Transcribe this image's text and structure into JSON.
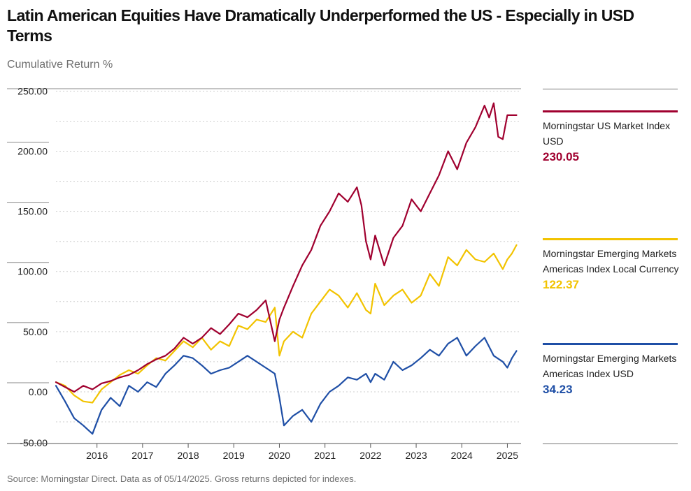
{
  "title": "Latin American Equities Have Dramatically Underperformed the US - Especially in USD Terms",
  "subtitle": "Cumulative Return %",
  "source": "Source: Morningstar Direct. Data as of 05/14/2025. Gross returns depicted for indexes.",
  "colors": {
    "us": "#a0002f",
    "em_local": "#f2c300",
    "em_usd": "#1f4fa6",
    "grid": "#cfcfcf",
    "axis": "#555555"
  },
  "chart_data": {
    "type": "line",
    "title": "Latin American Equities Have Dramatically Underperformed the US - Especially in USD Terms",
    "ylabel": "Cumulative Return %",
    "xlabel": "",
    "ylim": [
      -43,
      252
    ],
    "yticks": [
      -50,
      0,
      50,
      100,
      150,
      200,
      250
    ],
    "ytick_labels": [
      "-50.00",
      "0.00",
      "50.00",
      "100.00",
      "150.00",
      "200.00",
      "250.00"
    ],
    "xlim": [
      2015.1,
      2025.3
    ],
    "xticks": [
      2016,
      2017,
      2018,
      2019,
      2020,
      2021,
      2022,
      2023,
      2024,
      2025
    ],
    "xtick_labels": [
      "2016",
      "2017",
      "2018",
      "2019",
      "2020",
      "2021",
      "2022",
      "2023",
      "2024",
      "2025"
    ],
    "series": [
      {
        "name": "Morningstar US Market Index USD",
        "name_lines": [
          "Morningstar US Market Index",
          "USD"
        ],
        "last_value": "230.05",
        "color_key": "us",
        "x": [
          2015.1,
          2015.3,
          2015.5,
          2015.7,
          2015.9,
          2016.1,
          2016.3,
          2016.5,
          2016.7,
          2016.9,
          2017.1,
          2017.3,
          2017.5,
          2017.7,
          2017.9,
          2018.1,
          2018.3,
          2018.5,
          2018.7,
          2018.9,
          2019.1,
          2019.3,
          2019.5,
          2019.7,
          2019.9,
          2020.0,
          2020.1,
          2020.3,
          2020.5,
          2020.7,
          2020.9,
          2021.1,
          2021.3,
          2021.5,
          2021.7,
          2021.8,
          2021.9,
          2022.0,
          2022.1,
          2022.3,
          2022.5,
          2022.7,
          2022.9,
          2023.1,
          2023.3,
          2023.5,
          2023.7,
          2023.9,
          2024.1,
          2024.3,
          2024.5,
          2024.6,
          2024.7,
          2024.8,
          2024.9,
          2025.0,
          2025.1,
          2025.2
        ],
        "values": [
          8,
          4,
          0,
          5,
          2,
          7,
          9,
          12,
          14,
          18,
          23,
          27,
          30,
          36,
          45,
          40,
          45,
          53,
          48,
          56,
          65,
          62,
          68,
          76,
          42,
          60,
          70,
          88,
          105,
          118,
          138,
          150,
          165,
          158,
          170,
          155,
          125,
          110,
          130,
          105,
          128,
          138,
          160,
          150,
          165,
          180,
          200,
          185,
          207,
          220,
          238,
          228,
          240,
          212,
          210,
          230,
          230,
          230
        ]
      },
      {
        "name": "Morningstar Emerging Markets Americas Index Local Currency",
        "name_lines": [
          "Morningstar Emerging Markets",
          "Americas Index Local Currency"
        ],
        "last_value": "122.37",
        "color_key": "em_local",
        "x": [
          2015.1,
          2015.3,
          2015.5,
          2015.7,
          2015.9,
          2016.1,
          2016.3,
          2016.5,
          2016.7,
          2016.9,
          2017.1,
          2017.3,
          2017.5,
          2017.7,
          2017.9,
          2018.1,
          2018.3,
          2018.5,
          2018.7,
          2018.9,
          2019.1,
          2019.3,
          2019.5,
          2019.7,
          2019.9,
          2020.0,
          2020.1,
          2020.3,
          2020.5,
          2020.7,
          2020.9,
          2021.1,
          2021.3,
          2021.5,
          2021.7,
          2021.9,
          2022.0,
          2022.1,
          2022.3,
          2022.5,
          2022.7,
          2022.9,
          2023.1,
          2023.3,
          2023.5,
          2023.7,
          2023.9,
          2024.1,
          2024.3,
          2024.5,
          2024.7,
          2024.9,
          2025.0,
          2025.1,
          2025.2
        ],
        "values": [
          8,
          5,
          -3,
          -8,
          -9,
          2,
          8,
          14,
          18,
          15,
          22,
          28,
          26,
          34,
          42,
          37,
          45,
          35,
          42,
          38,
          55,
          52,
          60,
          58,
          70,
          30,
          42,
          50,
          45,
          65,
          75,
          85,
          80,
          70,
          82,
          68,
          65,
          90,
          72,
          80,
          85,
          74,
          80,
          98,
          88,
          112,
          105,
          118,
          110,
          108,
          115,
          102,
          110,
          115,
          122
        ]
      },
      {
        "name": "Morningstar Emerging Markets Americas Index USD",
        "name_lines": [
          "Morningstar Emerging Markets",
          "Americas Index USD"
        ],
        "last_value": "34.23",
        "color_key": "em_usd",
        "x": [
          2015.1,
          2015.3,
          2015.5,
          2015.7,
          2015.9,
          2016.1,
          2016.3,
          2016.5,
          2016.7,
          2016.9,
          2017.1,
          2017.3,
          2017.5,
          2017.7,
          2017.9,
          2018.1,
          2018.3,
          2018.5,
          2018.7,
          2018.9,
          2019.1,
          2019.3,
          2019.5,
          2019.7,
          2019.9,
          2020.0,
          2020.1,
          2020.3,
          2020.5,
          2020.7,
          2020.9,
          2021.1,
          2021.3,
          2021.5,
          2021.7,
          2021.9,
          2022.0,
          2022.1,
          2022.3,
          2022.5,
          2022.7,
          2022.9,
          2023.1,
          2023.3,
          2023.5,
          2023.7,
          2023.9,
          2024.1,
          2024.3,
          2024.5,
          2024.7,
          2024.9,
          2025.0,
          2025.1,
          2025.2
        ],
        "values": [
          5,
          -8,
          -22,
          -28,
          -35,
          -15,
          -5,
          -12,
          5,
          0,
          8,
          4,
          15,
          22,
          30,
          28,
          22,
          15,
          18,
          20,
          25,
          30,
          25,
          20,
          15,
          -5,
          -28,
          -20,
          -15,
          -25,
          -10,
          0,
          5,
          12,
          10,
          15,
          8,
          15,
          10,
          25,
          18,
          22,
          28,
          35,
          30,
          40,
          45,
          30,
          38,
          45,
          30,
          25,
          20,
          28,
          34
        ]
      }
    ]
  }
}
